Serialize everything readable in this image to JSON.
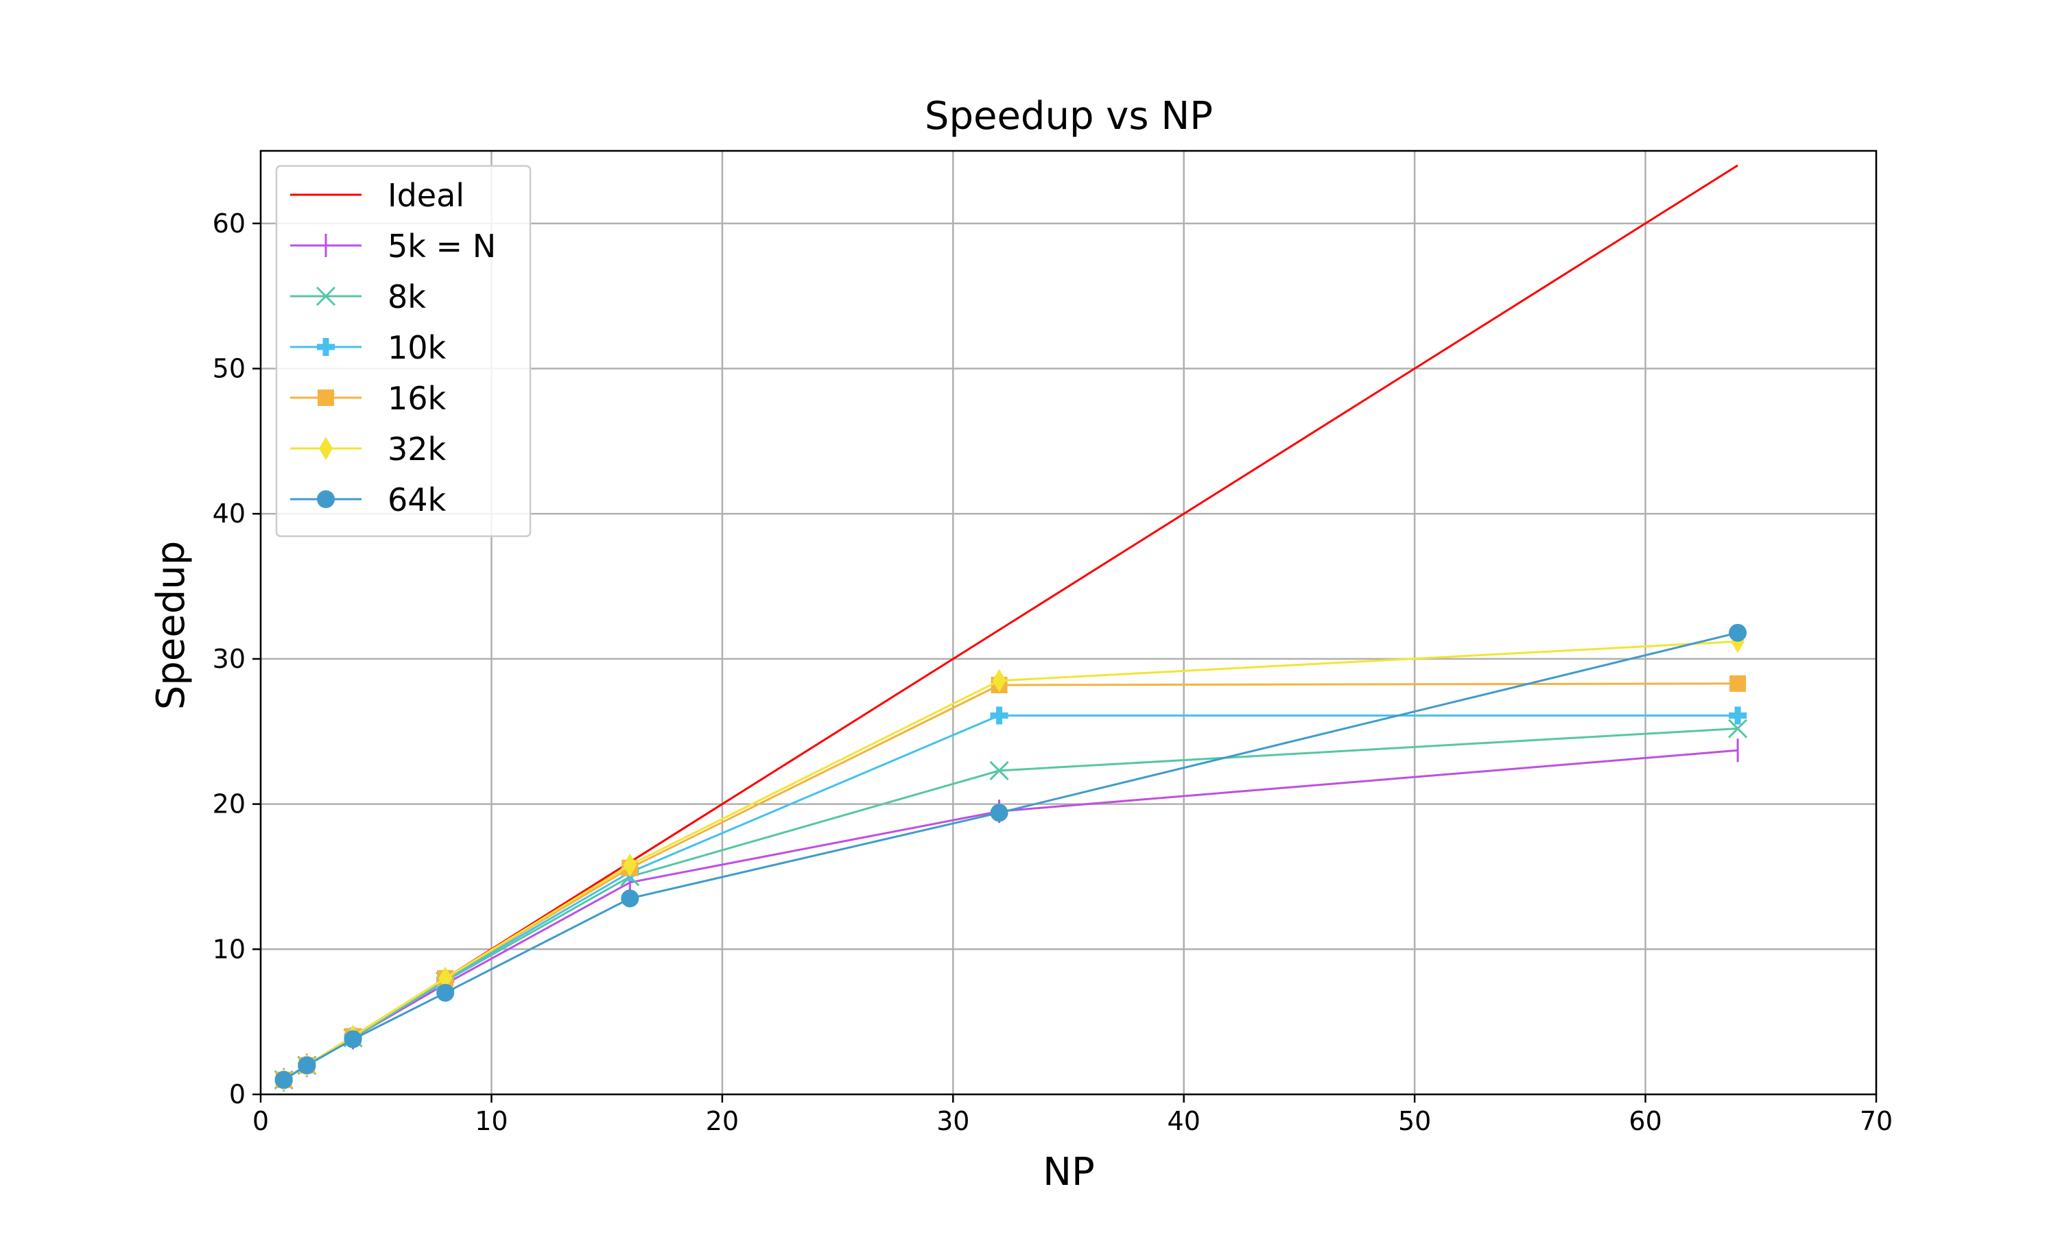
{
  "chart_data": {
    "type": "line",
    "title": "Speedup vs NP",
    "xlabel": "NP",
    "ylabel": "Speedup",
    "xlim": [
      0,
      70
    ],
    "ylim": [
      0,
      65
    ],
    "xticks": [
      0,
      10,
      20,
      30,
      40,
      50,
      60,
      70
    ],
    "yticks": [
      0,
      10,
      20,
      30,
      40,
      50,
      60
    ],
    "grid": true,
    "legend_position": "upper-left",
    "series": [
      {
        "name": "Ideal",
        "marker": "none",
        "color": "#ff0000",
        "x": [
          1,
          2,
          4,
          8,
          16,
          32,
          64
        ],
        "y": [
          1,
          2,
          4,
          8,
          16,
          32,
          64
        ]
      },
      {
        "name": " 5k = N",
        "marker": "vline",
        "color": "#bf4fe3",
        "x": [
          1,
          2,
          4,
          8,
          16,
          32,
          64
        ],
        "y": [
          1,
          2,
          3.9,
          7.6,
          14.6,
          19.5,
          23.7
        ]
      },
      {
        "name": " 8k",
        "marker": "x",
        "color": "#55c7a4",
        "x": [
          1,
          2,
          4,
          8,
          16,
          32,
          64
        ],
        "y": [
          1,
          2,
          3.9,
          7.8,
          15.0,
          22.3,
          25.2
        ]
      },
      {
        "name": "10k",
        "marker": "plus",
        "color": "#46c1ed",
        "x": [
          1,
          2,
          4,
          8,
          16,
          32,
          64
        ],
        "y": [
          1,
          2,
          4.0,
          7.9,
          15.3,
          26.1,
          26.1
        ]
      },
      {
        "name": "16k",
        "marker": "square",
        "color": "#f5b23f",
        "x": [
          1,
          2,
          4,
          8,
          16,
          32,
          64
        ],
        "y": [
          1,
          2,
          4.0,
          8.0,
          15.6,
          28.2,
          28.3
        ]
      },
      {
        "name": "32k",
        "marker": "diamond",
        "color": "#f4e434",
        "x": [
          1,
          2,
          4,
          8,
          16,
          32,
          64
        ],
        "y": [
          1,
          2,
          4.0,
          8.0,
          15.8,
          28.5,
          31.2
        ]
      },
      {
        "name": "64k",
        "marker": "circle",
        "color": "#3f9bcc",
        "x": [
          1,
          2,
          4,
          8,
          16,
          32,
          64
        ],
        "y": [
          1,
          2,
          3.8,
          7.0,
          13.5,
          19.4,
          31.8
        ]
      }
    ]
  }
}
